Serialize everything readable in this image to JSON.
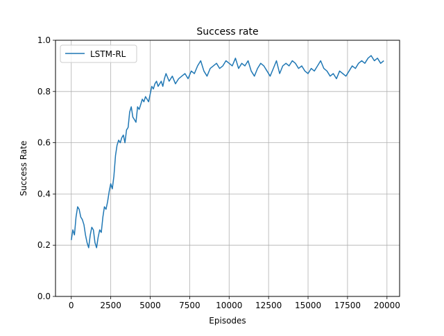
{
  "chart_data": {
    "type": "line",
    "title": "Success rate",
    "xlabel": "Episodes",
    "ylabel": "Success Rate",
    "xlim": [
      -1000,
      20800
    ],
    "ylim": [
      0.0,
      1.0
    ],
    "xticks": [
      0,
      2500,
      5000,
      7500,
      10000,
      12500,
      15000,
      17500,
      20000
    ],
    "yticks": [
      0.0,
      0.2,
      0.4,
      0.6,
      0.8,
      1.0
    ],
    "xtick_labels": [
      "0",
      "2500",
      "5000",
      "7500",
      "10000",
      "12500",
      "15000",
      "17500",
      "20000"
    ],
    "ytick_labels": [
      "0.0",
      "0.2",
      "0.4",
      "0.6",
      "0.8",
      "1.0"
    ],
    "grid": true,
    "legend": {
      "placement": "upper-left",
      "entries": [
        "LSTM-RL"
      ]
    },
    "series": [
      {
        "name": "LSTM-RL",
        "color": "#1f77b4",
        "x": [
          0,
          100,
          200,
          300,
          400,
          500,
          600,
          700,
          800,
          900,
          1000,
          1100,
          1200,
          1300,
          1400,
          1500,
          1600,
          1700,
          1800,
          1900,
          2000,
          2100,
          2200,
          2300,
          2400,
          2500,
          2600,
          2700,
          2800,
          2900,
          3000,
          3100,
          3200,
          3300,
          3400,
          3500,
          3600,
          3700,
          3800,
          3900,
          4000,
          4100,
          4200,
          4300,
          4400,
          4500,
          4600,
          4700,
          4800,
          4900,
          5000,
          5100,
          5200,
          5300,
          5400,
          5500,
          5600,
          5700,
          5800,
          5900,
          6000,
          6200,
          6400,
          6600,
          6800,
          7000,
          7200,
          7400,
          7600,
          7800,
          8000,
          8200,
          8400,
          8600,
          8800,
          9000,
          9200,
          9400,
          9600,
          9800,
          10000,
          10200,
          10400,
          10600,
          10800,
          11000,
          11200,
          11400,
          11600,
          11800,
          12000,
          12200,
          12400,
          12600,
          12800,
          13000,
          13200,
          13400,
          13600,
          13800,
          14000,
          14200,
          14400,
          14600,
          14800,
          15000,
          15200,
          15400,
          15600,
          15800,
          16000,
          16200,
          16400,
          16600,
          16800,
          17000,
          17200,
          17400,
          17600,
          17800,
          18000,
          18200,
          18400,
          18600,
          18800,
          19000,
          19200,
          19400,
          19600,
          19800
        ],
        "y": [
          0.22,
          0.26,
          0.24,
          0.31,
          0.35,
          0.34,
          0.31,
          0.3,
          0.28,
          0.24,
          0.21,
          0.19,
          0.24,
          0.27,
          0.26,
          0.21,
          0.19,
          0.23,
          0.26,
          0.25,
          0.31,
          0.35,
          0.34,
          0.37,
          0.41,
          0.44,
          0.42,
          0.47,
          0.55,
          0.59,
          0.61,
          0.6,
          0.62,
          0.63,
          0.6,
          0.65,
          0.66,
          0.72,
          0.74,
          0.7,
          0.69,
          0.68,
          0.74,
          0.73,
          0.75,
          0.77,
          0.76,
          0.78,
          0.77,
          0.76,
          0.79,
          0.82,
          0.81,
          0.83,
          0.84,
          0.82,
          0.83,
          0.84,
          0.82,
          0.85,
          0.87,
          0.84,
          0.86,
          0.83,
          0.85,
          0.86,
          0.87,
          0.85,
          0.88,
          0.87,
          0.9,
          0.92,
          0.88,
          0.86,
          0.89,
          0.9,
          0.91,
          0.89,
          0.9,
          0.92,
          0.91,
          0.9,
          0.93,
          0.89,
          0.91,
          0.9,
          0.92,
          0.88,
          0.86,
          0.89,
          0.91,
          0.9,
          0.88,
          0.86,
          0.89,
          0.92,
          0.87,
          0.9,
          0.91,
          0.9,
          0.92,
          0.91,
          0.89,
          0.9,
          0.88,
          0.87,
          0.89,
          0.88,
          0.9,
          0.92,
          0.89,
          0.88,
          0.86,
          0.87,
          0.85,
          0.88,
          0.87,
          0.86,
          0.88,
          0.9,
          0.89,
          0.91,
          0.92,
          0.91,
          0.93,
          0.94,
          0.92,
          0.93,
          0.91,
          0.92
        ]
      }
    ]
  }
}
